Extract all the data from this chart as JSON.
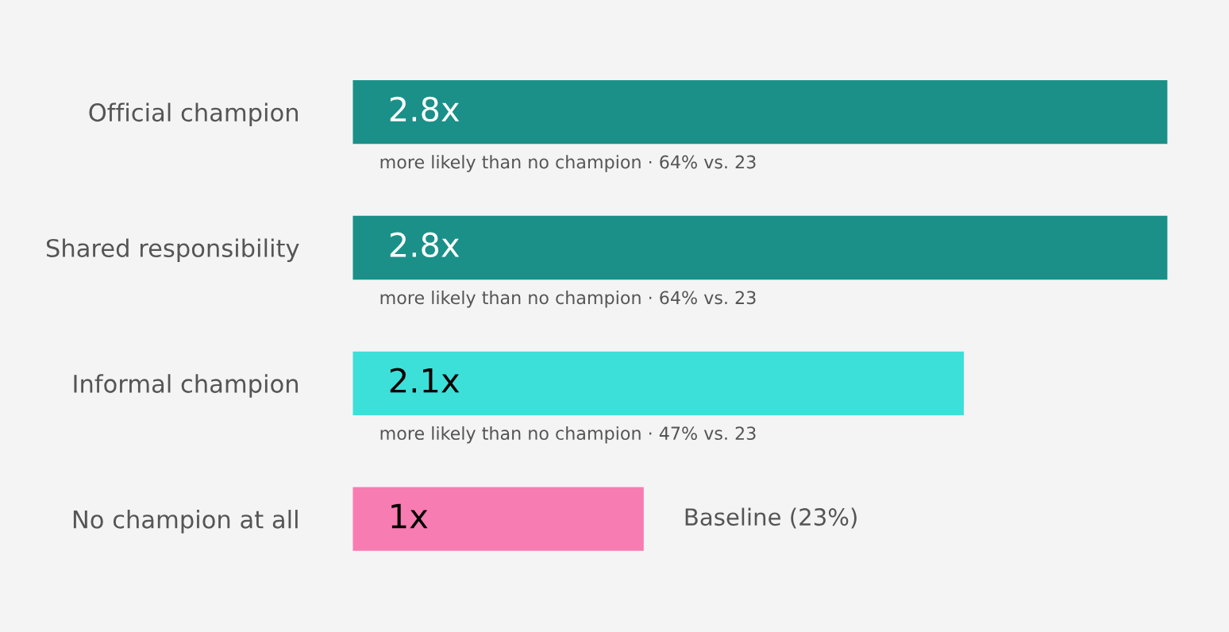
{
  "chart_data": {
    "type": "bar",
    "orientation": "horizontal",
    "categories": [
      "Official champion",
      "Shared responsibility",
      "Informal champion",
      "No champion at all"
    ],
    "values": [
      2.8,
      2.8,
      2.1,
      1
    ],
    "colors": [
      "#1a9089",
      "#1a9089",
      "#3ddfd9",
      "#f77cb1"
    ],
    "value_labels": [
      "2.8x",
      "2.8x",
      "2.1x",
      "1x"
    ],
    "annotations": [
      "more likely than no champion · 64% vs. 23",
      "more likely than no champion · 64% vs. 23",
      "more likely than no champion · 47% vs. 23",
      {
        "text": "Baseline (23%)",
        "x": 1,
        "y": "No champion at all"
      }
    ],
    "grid": false,
    "legend": false
  }
}
